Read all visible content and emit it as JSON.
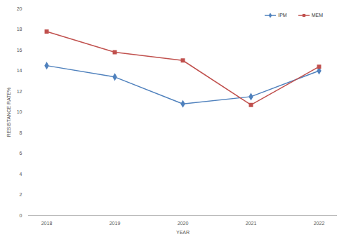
{
  "chart_data": {
    "type": "line",
    "x_label": "YEAR",
    "y_label": "RESISTANCE RATE%",
    "categories": [
      "2018",
      "2019",
      "2020",
      "2021",
      "2022"
    ],
    "series": [
      {
        "name": "IPM",
        "color": "#4f81bd",
        "marker": "diamond",
        "values": [
          14.5,
          13.4,
          10.8,
          11.5,
          14.0
        ]
      },
      {
        "name": "MEM",
        "color": "#c0504d",
        "marker": "square",
        "values": [
          17.8,
          15.8,
          15.0,
          10.7,
          14.4
        ]
      }
    ],
    "ylim": [
      0,
      20
    ],
    "yticks": [
      0,
      2,
      4,
      6,
      8,
      10,
      12,
      14,
      16,
      18,
      20
    ],
    "legend": "top-right",
    "grid": false
  }
}
